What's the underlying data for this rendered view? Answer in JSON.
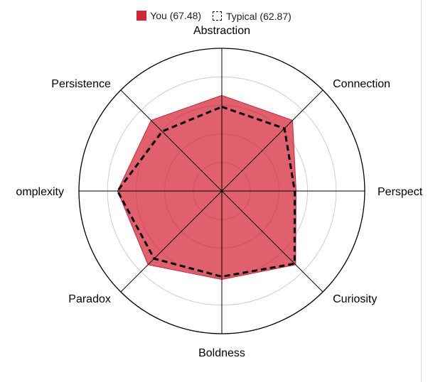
{
  "legend": {
    "you_label": "You (67.48)",
    "typical_label": "Typical (62.87)"
  },
  "colors": {
    "you_fill": "#d42435",
    "grid_circle": "#cccccc",
    "outer_circle": "#000000",
    "typical_stroke": "#000000"
  },
  "chart_data": {
    "type": "radar",
    "title": "",
    "axes": [
      "Abstraction",
      "Connection",
      "Perspect",
      "Curiosity",
      "Boldness",
      "Paradox",
      "omplexity",
      "Persistence"
    ],
    "series": [
      {
        "name": "You (67.48)",
        "style": "filled",
        "values": [
          67,
          70,
          52,
          73,
          62,
          73,
          73,
          70
        ]
      },
      {
        "name": "Typical (62.87)",
        "style": "dashed",
        "values": [
          59,
          62,
          51,
          72,
          60,
          67,
          73,
          59
        ]
      }
    ],
    "range": [
      0,
      100
    ],
    "grid_levels": 5,
    "grid": true,
    "legend_position": "top-center"
  }
}
